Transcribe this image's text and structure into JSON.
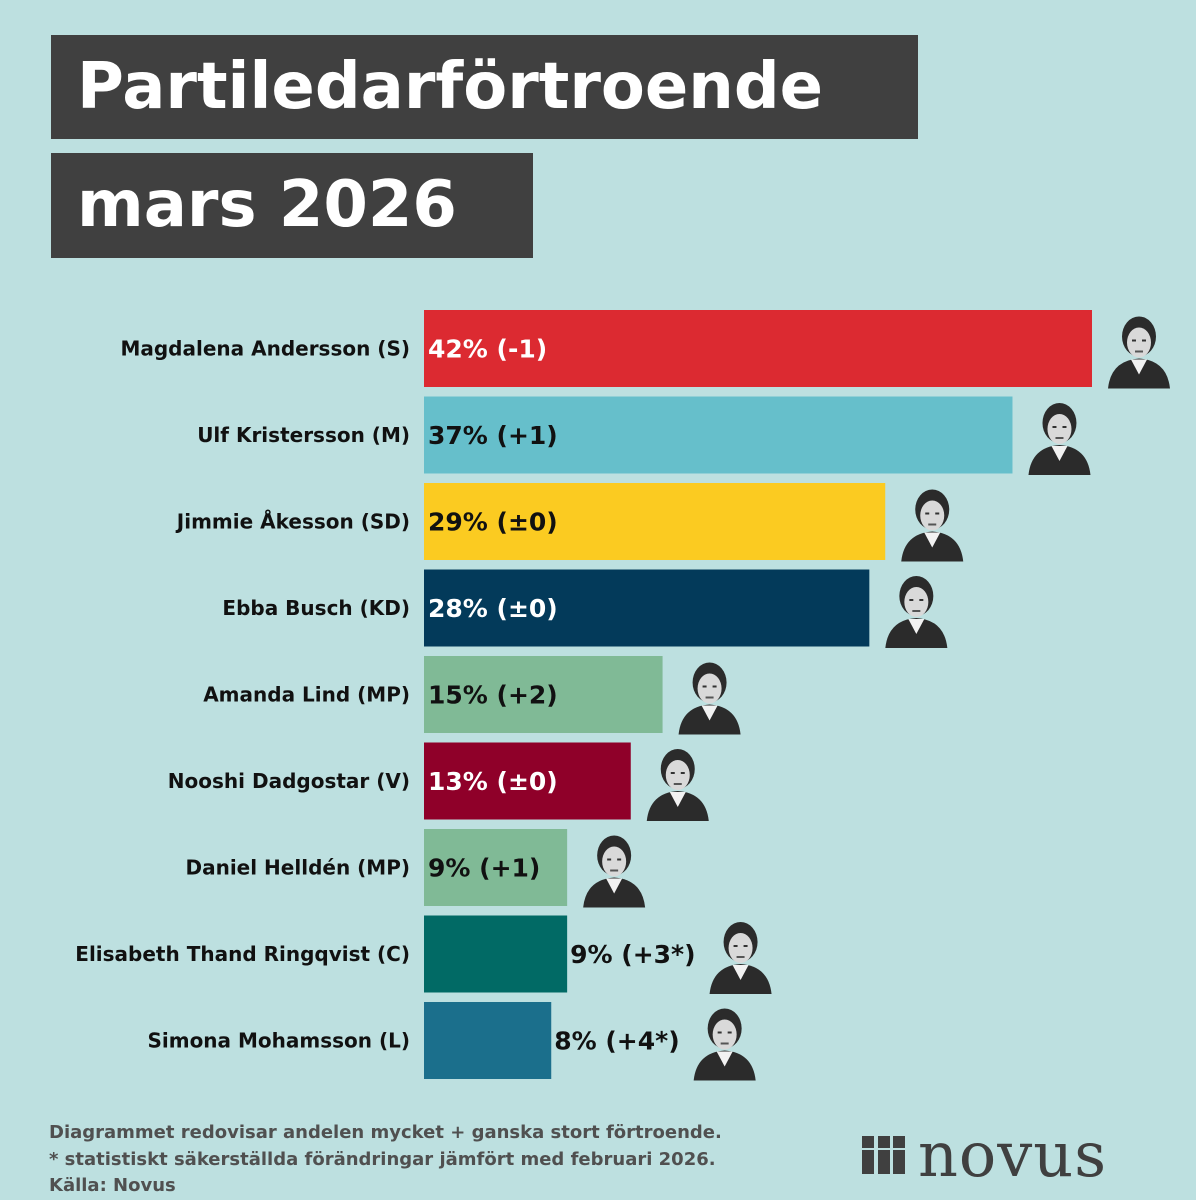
{
  "title": {
    "line1": "Partiledarförtroende",
    "line2": "mars 2026"
  },
  "chart_data": {
    "type": "bar",
    "orientation": "horizontal",
    "title": "Partiledarförtroende mars 2026",
    "xlabel": "",
    "ylabel": "",
    "xlim": [
      0,
      42
    ],
    "grid": false,
    "categories": [
      "Magdalena Andersson (S)",
      "Ulf Kristersson (M)",
      "Jimmie Åkesson (SD)",
      "Ebba Busch (KD)",
      "Amanda Lind (MP)",
      "Nooshi Dadgostar (V)",
      "Daniel Helldén (MP)",
      "Elisabeth Thand Ringqvist (C)",
      "Simona Mohamsson (L)"
    ],
    "values": [
      42,
      37,
      29,
      28,
      15,
      13,
      9,
      9,
      8
    ],
    "data_labels": [
      "42% (-1)",
      "37% (+1)",
      "29% (±0)",
      "28% (±0)",
      "15% (+2)",
      "13% (±0)",
      "9% (+1)",
      "9% (+3*)",
      "8% (+4*)"
    ],
    "label_inside": [
      true,
      true,
      true,
      true,
      true,
      true,
      true,
      false,
      false
    ],
    "colors": [
      "#dc2a31",
      "#66bfcb",
      "#fbcb21",
      "#033a5a",
      "#80ba96",
      "#8f0029",
      "#80ba96",
      "#016a65",
      "#1b6f8c"
    ],
    "label_colors": [
      "#ffffff",
      "#111111",
      "#111111",
      "#ffffff",
      "#111111",
      "#ffffff",
      "#111111",
      "#111111",
      "#111111"
    ]
  },
  "footnotes": [
    "Diagrammet redovisar andelen mycket + ganska stort förtroende.",
    "* statistiskt säkerställda förändringar jämfört med februari 2026.",
    "Källa: Novus"
  ],
  "logo": {
    "text": "novus"
  }
}
